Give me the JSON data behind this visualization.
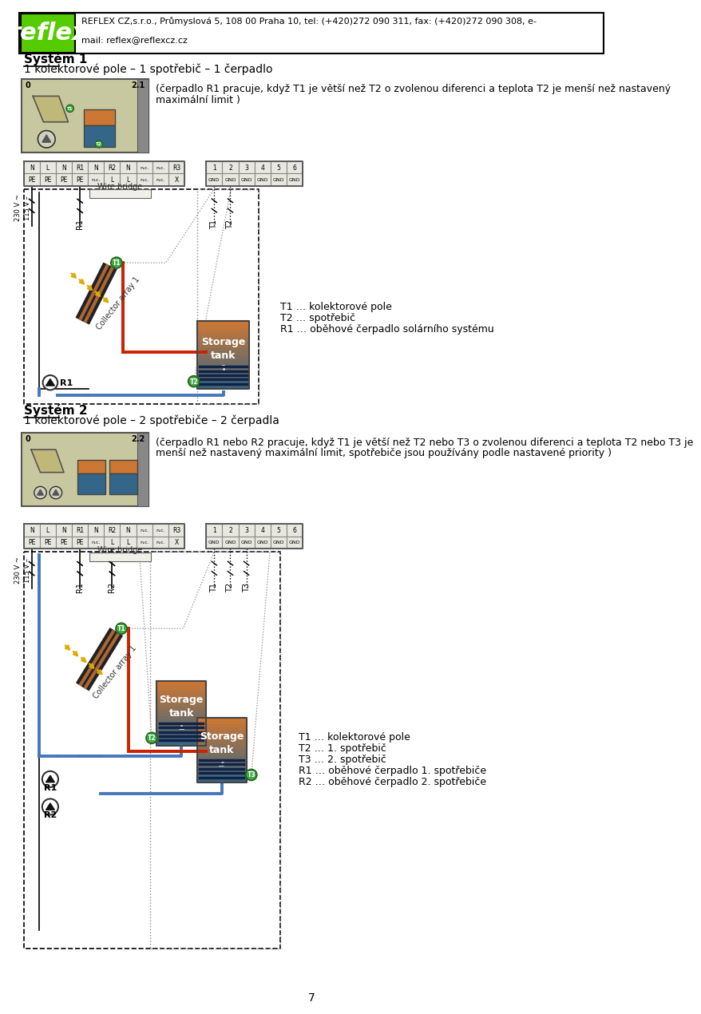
{
  "page_width": 9.6,
  "page_height": 16.24,
  "background_color": "#ffffff",
  "header": {
    "logo_bg": "#55cc00",
    "logo_text": "reflex",
    "logo_text_color": "#ffffff",
    "company_line1": "REFLEX CZ,s.r.o., Průmyslová 5, 108 00 Praha 10, tel: (+420)272 090 311, fax: (+420)272 090 308, e-",
    "company_line2": "mail: reflex@reflexcz.cz",
    "email": "reflex@reflexcz.cz"
  },
  "sys1_title": "Systém 1",
  "sys1_subtitle": "1 kolektorové pole – 1 spotřebič – 1 čerpadlo",
  "sys1_desc1": "(čerpadlo R1 pracuje, když T1 je větší než T2 o zvolenou diferenci a teplota T2 je menší než nastavený",
  "sys1_desc2": "maximální limit )",
  "sys1_legend": [
    "T1 … kolektorové pole",
    "T2 … spotřebič",
    "R1 … oběhové čerpadlo solárního systému"
  ],
  "sys2_title": "Systém 2",
  "sys2_subtitle": "1 kolektorové pole – 2 spotřebiče – 2 čerpadla",
  "sys2_desc1": "(čerpadlo R1 nebo R2 pracuje, když T1 je větší než T2 nebo T3 o zvolenou diferenci a teplota T2 nebo T3 je",
  "sys2_desc2": "menší než nastavený maximální limit, spotřebiče jsou používány podle nastavené priority )",
  "sys2_legend": [
    "T1 … kolektorové pole",
    "T2 … 1. spotřebič",
    "T3 … 2. spotřebič",
    "R1 … oběhové čerpadlo 1. spotřebiče",
    "R2 … oběhové čerpadlo 2. spotřebiče"
  ],
  "page_number": "7",
  "tb_labels_top": [
    "N",
    "L",
    "N",
    "R1",
    "N",
    "R2",
    "N",
    "n.c.",
    "n.c.",
    "R3"
  ],
  "tb_labels_bot": [
    "PE",
    "PE",
    "PE",
    "PE",
    "n.c.",
    "L",
    "L",
    "n.c.",
    "n.c.",
    "X"
  ],
  "tb2_labels_top": [
    "1",
    "2",
    "3",
    "4",
    "5",
    "6"
  ],
  "tb2_labels_bot": [
    "GND",
    "GND",
    "GND",
    "GND",
    "GND",
    "GND"
  ],
  "colors": {
    "red_pipe": "#cc2200",
    "blue_pipe": "#4477bb",
    "dashed_wire": "#000000",
    "tank_orange": "#cc7733",
    "tank_blue": "#4488aa",
    "tank_grad_top": "#cc7733",
    "tank_grad_bot": "#336688",
    "sensor_green": "#44aa44",
    "solar_collector_dark": "#222222",
    "solar_collector_copper": "#aa6633",
    "sun_arrow": "#ddaa00",
    "terminal_bg": "#e8e8e0",
    "terminal_border": "#888888"
  }
}
